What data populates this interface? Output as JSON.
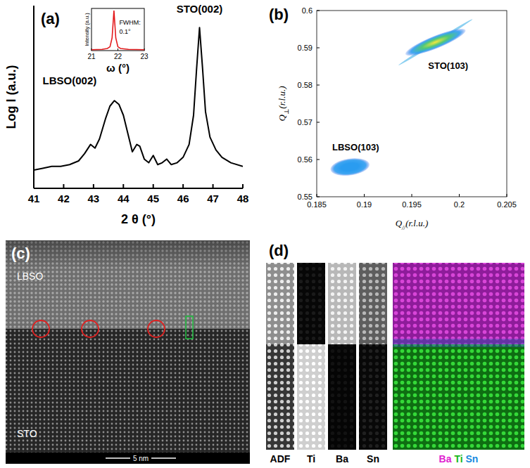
{
  "panel_labels": [
    "(a)",
    "(b)",
    "(c)",
    "(d)"
  ],
  "chart_data": [
    {
      "type": "line",
      "x_label": "2 θ (°)",
      "y_label": "Log I (a.u.)",
      "x": [
        41,
        41.3,
        41.6,
        41.9,
        42.2,
        42.5,
        42.7,
        42.9,
        43.05,
        43.2,
        43.4,
        43.55,
        43.7,
        43.85,
        44,
        44.15,
        44.3,
        44.45,
        44.55,
        44.7,
        44.85,
        45,
        45.15,
        45.3,
        45.45,
        45.6,
        45.8,
        46,
        46.2,
        46.35,
        46.45,
        46.55,
        46.65,
        46.75,
        46.9,
        47.1,
        47.3,
        47.6,
        48
      ],
      "values": [
        10,
        11,
        12,
        12,
        13,
        15,
        19,
        24,
        22,
        27,
        38,
        45,
        48,
        46,
        40,
        30,
        20,
        24,
        23,
        16,
        14,
        18,
        13,
        14,
        16,
        13,
        14,
        17,
        24,
        40,
        65,
        88,
        66,
        42,
        28,
        21,
        17,
        14,
        12
      ],
      "color": "#000000",
      "xlim": [
        41,
        48
      ],
      "xticks": [
        41,
        42,
        43,
        44,
        45,
        46,
        47,
        48
      ],
      "ylim": [
        0,
        100
      ],
      "tick_labels": "x",
      "annotations": [
        {
          "text": "LBSO(002)",
          "x": 42.2,
          "y": 57
        },
        {
          "text": "STO(002)",
          "x": 46.55,
          "y": 96
        }
      ]
    },
    {
      "type": "line",
      "x_label": "ω (°)",
      "y_label": "Intensity (a.u.)",
      "x": [
        21,
        21.4,
        21.6,
        21.7,
        21.78,
        21.85,
        21.92,
        22,
        22.1,
        22.4,
        23
      ],
      "values": [
        2,
        3,
        5,
        9,
        30,
        95,
        30,
        9,
        5,
        3,
        2
      ],
      "color": "#e31a1c",
      "xlim": [
        21,
        23
      ],
      "xticks": [
        21,
        22,
        23
      ],
      "ylim": [
        0,
        100
      ],
      "tick_labels": "x",
      "annotations": [
        {
          "text": "FWHM:",
          "x": 22.05,
          "y": 62
        },
        {
          "text": "0.1°",
          "x": 22.05,
          "y": 40
        }
      ]
    },
    {
      "type": "scatter",
      "x_label": "Q//(r.l.u.)",
      "y_label": "Q⊥(r.l.u.)",
      "series": [
        {
          "name": "STO(103)",
          "x": [
            0.1975
          ],
          "values": [
            0.5915
          ],
          "color": "#f4e83c"
        },
        {
          "name": "LBSO(103)",
          "x": [
            0.1885
          ],
          "values": [
            0.558
          ],
          "color": "#2a9cf0"
        }
      ],
      "xlim": [
        0.185,
        0.205
      ],
      "xticks": [
        0.185,
        0.19,
        0.195,
        0.2,
        0.205
      ],
      "ylim": [
        0.55,
        0.6
      ],
      "yticks": [
        0.55,
        0.56,
        0.57,
        0.58,
        0.59,
        0.6
      ]
    }
  ],
  "images": [
    {
      "type": "stem",
      "top_label": "LBSO",
      "bottom_label": "STO",
      "scale_bar": "5 nm"
    },
    {
      "type": "eels",
      "channels": [
        "ADF",
        "Ti",
        "Ba",
        "Sn"
      ],
      "composite": [
        {
          "text": "Ba",
          "color": "#e020d0"
        },
        {
          "text": "Ti",
          "color": "#18b818"
        },
        {
          "text": "Sn",
          "color": "#1a8ae0"
        }
      ]
    }
  ]
}
